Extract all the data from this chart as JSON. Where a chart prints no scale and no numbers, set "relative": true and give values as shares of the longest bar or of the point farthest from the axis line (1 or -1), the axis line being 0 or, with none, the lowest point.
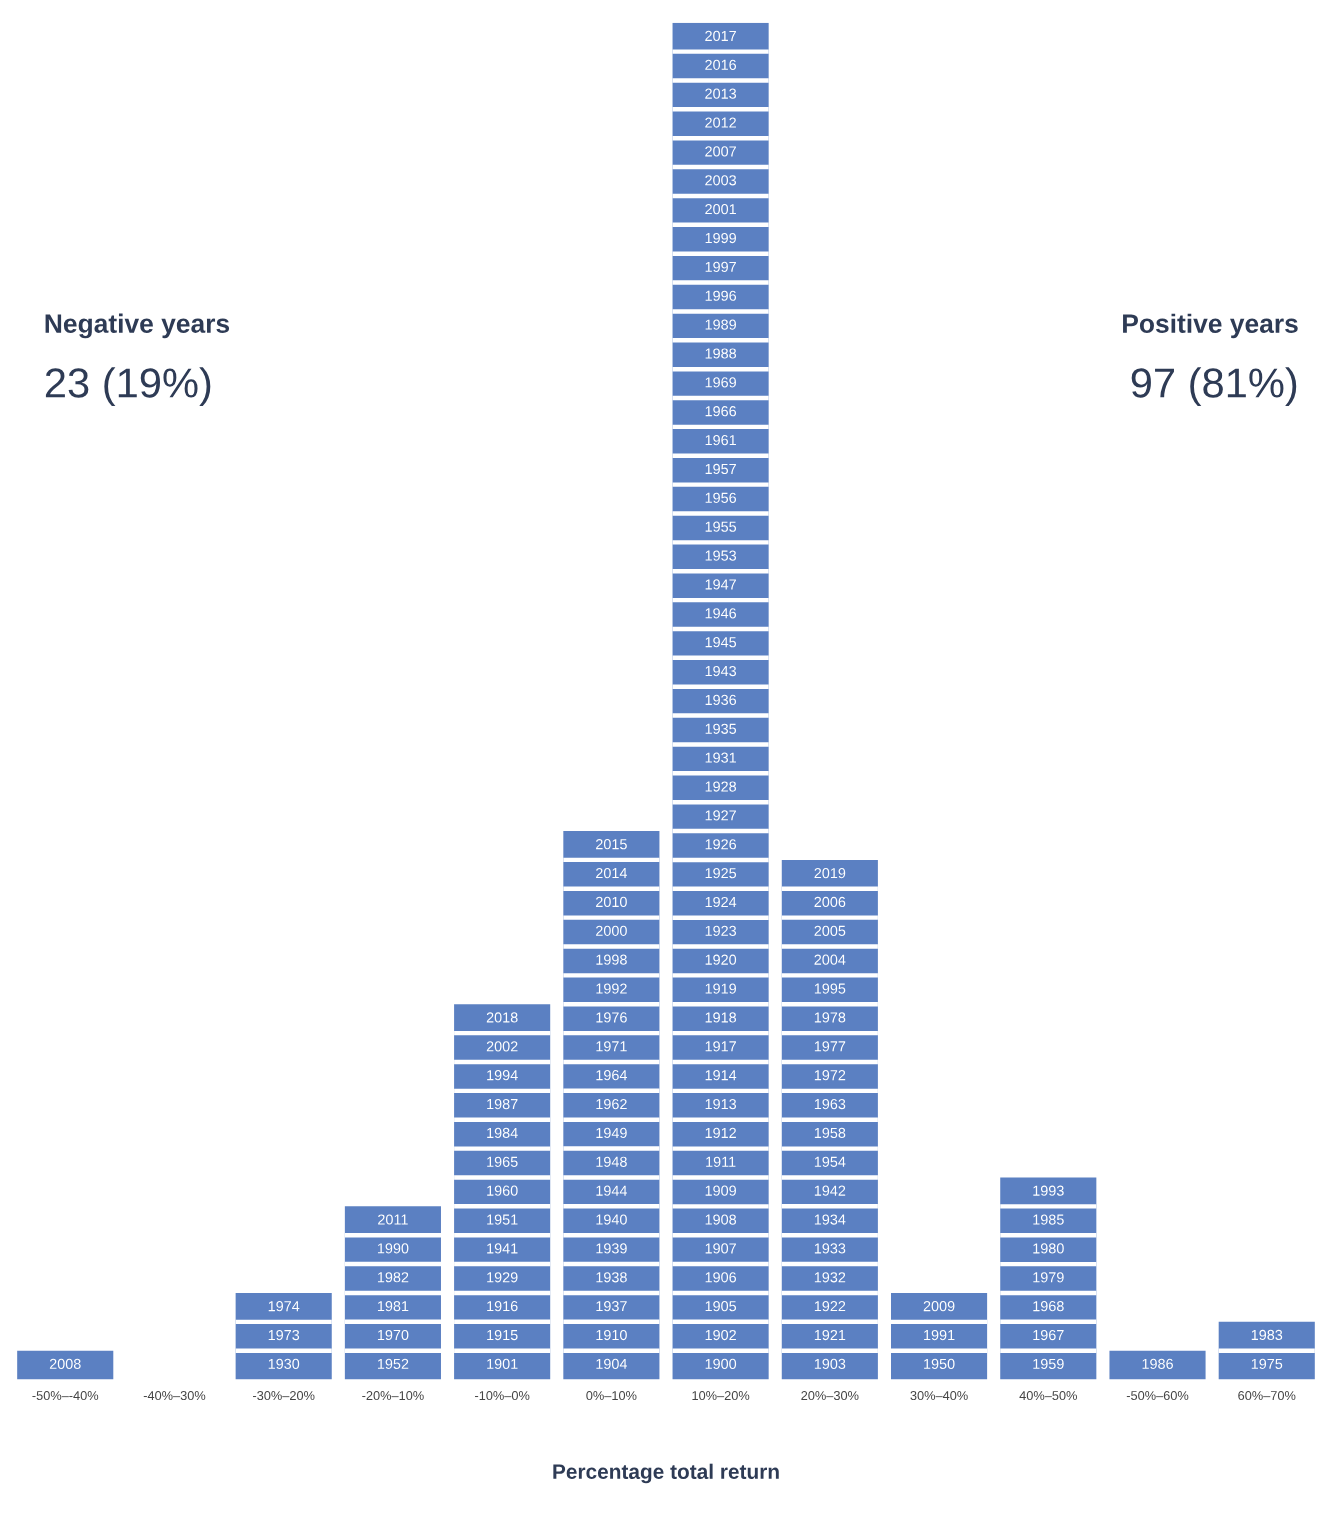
{
  "chart_data": {
    "type": "bar",
    "relative": true,
    "color": "#5b80c2",
    "xlabel": "Percentage total return",
    "categories": [
      "-50%–-40%",
      "-40%–30%",
      "-30%–20%",
      "-20%–10%",
      "-10%–0%",
      "0%–10%",
      "10%–20%",
      "20%–30%",
      "30%–40%",
      "40%–50%",
      "-50%–60%",
      "60%–70%"
    ],
    "values": [
      0.0213,
      0,
      0.0638,
      0.1277,
      0.2766,
      0.4043,
      1,
      0.383,
      0.0638,
      0.1489,
      0.0213,
      0.0426
    ],
    "annotations": [
      "Negative years",
      "23 (19%)",
      "Positive years",
      "97 (81%)",
      "2008",
      "1930",
      "1973",
      "1974",
      "1952",
      "1970",
      "1981",
      "1982",
      "1990",
      "2011",
      "1901",
      "1915",
      "1916",
      "1929",
      "1941",
      "1951",
      "1960",
      "1965",
      "1984",
      "1987",
      "1994",
      "2002",
      "2018",
      "1904",
      "1910",
      "1937",
      "1938",
      "1939",
      "1940",
      "1944",
      "1948",
      "1949",
      "1962",
      "1964",
      "1971",
      "1976",
      "1992",
      "1998",
      "2000",
      "2010",
      "2014",
      "2015",
      "1900",
      "1902",
      "1905",
      "1906",
      "1907",
      "1908",
      "1909",
      "1911",
      "1912",
      "1913",
      "1914",
      "1917",
      "1918",
      "1919",
      "1920",
      "1923",
      "1924",
      "1925",
      "1926",
      "1927",
      "1928",
      "1931",
      "1935",
      "1936",
      "1943",
      "1945",
      "1946",
      "1947",
      "1953",
      "1955",
      "1956",
      "1957",
      "1961",
      "1966",
      "1969",
      "1988",
      "1989",
      "1996",
      "1997",
      "1999",
      "2001",
      "2003",
      "2007",
      "2012",
      "2013",
      "2016",
      "2017",
      "1903",
      "1921",
      "1922",
      "1932",
      "1933",
      "1934",
      "1942",
      "1954",
      "1958",
      "1963",
      "1972",
      "1977",
      "1978",
      "1995",
      "2004",
      "2005",
      "2006",
      "2019",
      "1950",
      "1991",
      "2009",
      "1959",
      "1967",
      "1968",
      "1979",
      "1980",
      "1985",
      "1993",
      "1986",
      "1975",
      "1983"
    ]
  }
}
